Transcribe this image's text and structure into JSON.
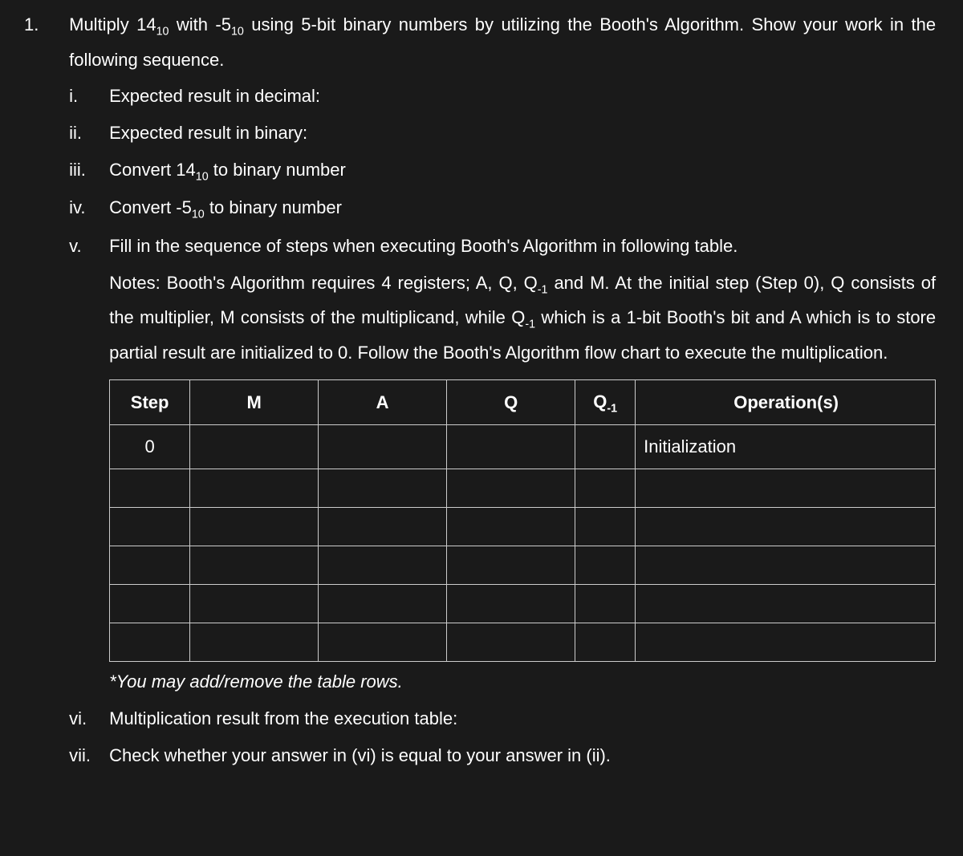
{
  "question": {
    "number": "1.",
    "text_parts": [
      "Multiply 14",
      " with -5",
      " using 5-bit binary numbers by utilizing the Booth's Algorithm. Show your work in the following sequence."
    ],
    "sub_base": "10"
  },
  "items": {
    "i": {
      "marker": "i.",
      "text": "Expected result in decimal:"
    },
    "ii": {
      "marker": "ii.",
      "text": "Expected result in binary:"
    },
    "iii": {
      "marker": "iii.",
      "pre": "Convert 14",
      "sub": "10",
      "post": " to binary number"
    },
    "iv": {
      "marker": "iv.",
      "pre": "Convert -5",
      "sub": "10",
      "post": " to binary number"
    },
    "v": {
      "marker": "v.",
      "text": "Fill in the sequence of steps when executing Booth's Algorithm in following table.",
      "notes_parts": {
        "p1": "Notes: Booth's Algorithm requires 4 registers; A, Q, Q",
        "s1": "-1",
        "p2": " and M. At the initial step (Step 0), Q consists of the multiplier, M consists of the multiplicand, while Q",
        "s2": "-1",
        "p3": " which is a 1-bit Booth's bit and A which is to store partial result are initialized to 0. Follow the Booth's Algorithm flow chart to execute the multiplication."
      }
    },
    "vi": {
      "marker": "vi.",
      "text": "Multiplication result from the execution table:"
    },
    "vii": {
      "marker": "vii.",
      "text": "Check whether your answer in (vi) is equal to your answer in (ii)."
    }
  },
  "table": {
    "headers": {
      "step": "Step",
      "m": "M",
      "a": "A",
      "q": "Q",
      "q1_pre": "Q",
      "q1_sub": "-1",
      "op": "Operation(s)"
    },
    "rows": [
      {
        "step": "0",
        "m": "",
        "a": "",
        "q": "",
        "q1": "",
        "op": "Initialization"
      },
      {
        "step": "",
        "m": "",
        "a": "",
        "q": "",
        "q1": "",
        "op": ""
      },
      {
        "step": "",
        "m": "",
        "a": "",
        "q": "",
        "q1": "",
        "op": ""
      },
      {
        "step": "",
        "m": "",
        "a": "",
        "q": "",
        "q1": "",
        "op": ""
      },
      {
        "step": "",
        "m": "",
        "a": "",
        "q": "",
        "q1": "",
        "op": ""
      },
      {
        "step": "",
        "m": "",
        "a": "",
        "q": "",
        "q1": "",
        "op": ""
      }
    ],
    "note": "*You may add/remove the table rows."
  }
}
